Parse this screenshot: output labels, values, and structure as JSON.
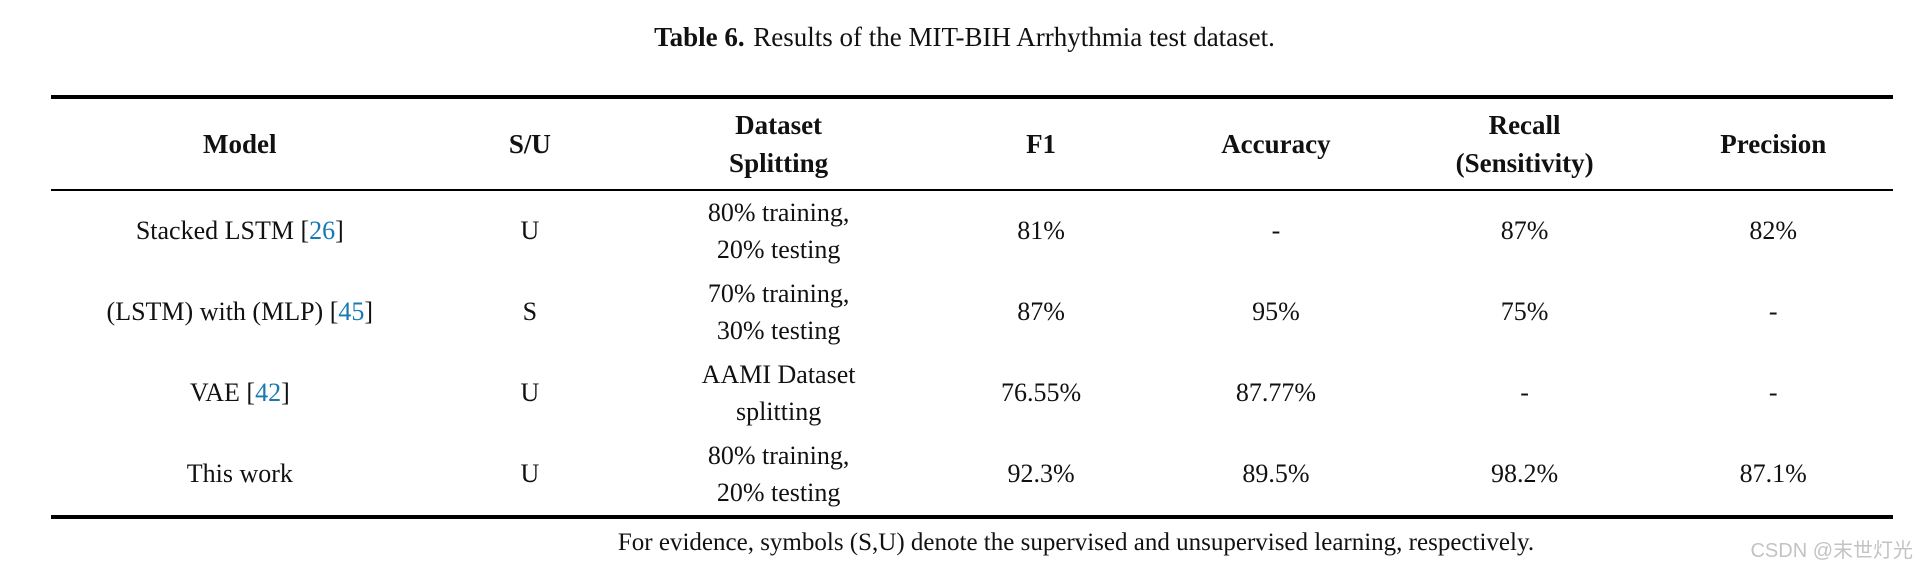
{
  "caption": {
    "label": "Table 6.",
    "text": "Results of the MIT-BIH Arrhythmia test dataset."
  },
  "table": {
    "columns": [
      {
        "line1": "Model"
      },
      {
        "line1": "S/U"
      },
      {
        "line1": "Dataset",
        "line2": "Splitting"
      },
      {
        "line1": "F1"
      },
      {
        "line1": "Accuracy"
      },
      {
        "line1": "Recall",
        "line2": "(Sensitivity)"
      },
      {
        "line1": "Precision"
      }
    ],
    "rows": [
      {
        "model_pre": "Stacked LSTM [",
        "cite": "26",
        "model_post": "]",
        "su": "U",
        "split1": "80% training,",
        "split2": "20% testing",
        "f1": "81%",
        "accuracy": "-",
        "recall": "87%",
        "precision": "82%"
      },
      {
        "model_pre": "(LSTM) with (MLP) [",
        "cite": "45",
        "model_post": "]",
        "su": "S",
        "split1": "70% training,",
        "split2": "30% testing",
        "f1": "87%",
        "accuracy": "95%",
        "recall": "75%",
        "precision": "-"
      },
      {
        "model_pre": "VAE [",
        "cite": "42",
        "model_post": "]",
        "su": "U",
        "split1": "AAMI Dataset",
        "split2": "splitting",
        "f1": "76.55%",
        "accuracy": "87.77%",
        "recall": "-",
        "precision": "-"
      },
      {
        "model_pre": "This work",
        "cite": "",
        "model_post": "",
        "su": "U",
        "split1": "80% training,",
        "split2": "20% testing",
        "f1": "92.3%",
        "accuracy": "89.5%",
        "recall": "98.2%",
        "precision": "87.1%"
      }
    ]
  },
  "footnote": "For evidence, symbols (S,U) denote the supervised and unsupervised learning, respectively.",
  "watermark": "CSDN @末世灯光",
  "colors": {
    "citation_link": "#1878b4",
    "rule": "#000000",
    "watermark": "#c3c3c3"
  }
}
